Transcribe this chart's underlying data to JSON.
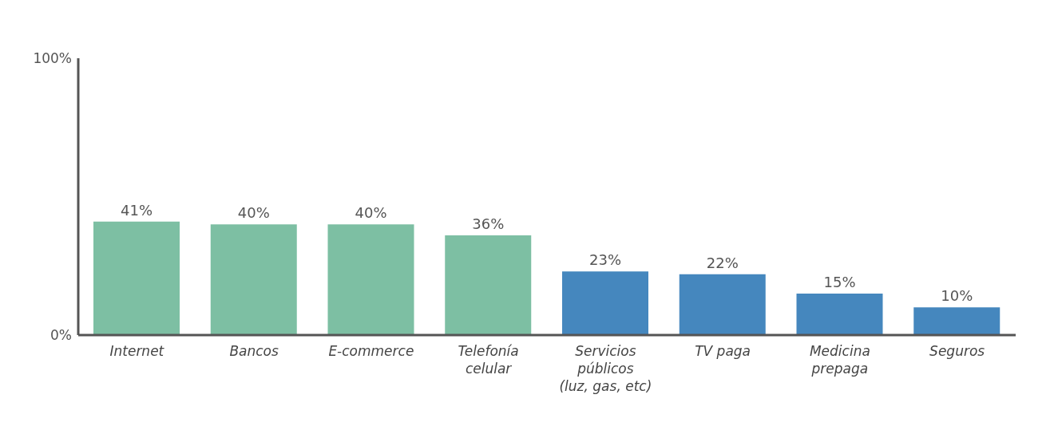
{
  "chart_data": {
    "type": "bar",
    "categories": [
      "Internet",
      "Bancos",
      "E-commerce",
      "Telefonía celular",
      "Servicios públicos (luz, gas, etc)",
      "TV paga",
      "Medicina prepaga",
      "Seguros"
    ],
    "values": [
      41,
      40,
      40,
      36,
      23,
      22,
      15,
      10
    ],
    "colors": [
      "#7dbfa3",
      "#7dbfa3",
      "#7dbfa3",
      "#7dbfa3",
      "#4587be",
      "#4587be",
      "#4587be",
      "#4587be"
    ],
    "value_labels": [
      "41%",
      "40%",
      "40%",
      "36%",
      "23%",
      "22%",
      "15%",
      "10%"
    ],
    "ylim": [
      0,
      100
    ],
    "yticks": [
      {
        "value": 0,
        "label": "0%"
      },
      {
        "value": 100,
        "label": "100%"
      }
    ],
    "grid": false,
    "legend": false
  }
}
